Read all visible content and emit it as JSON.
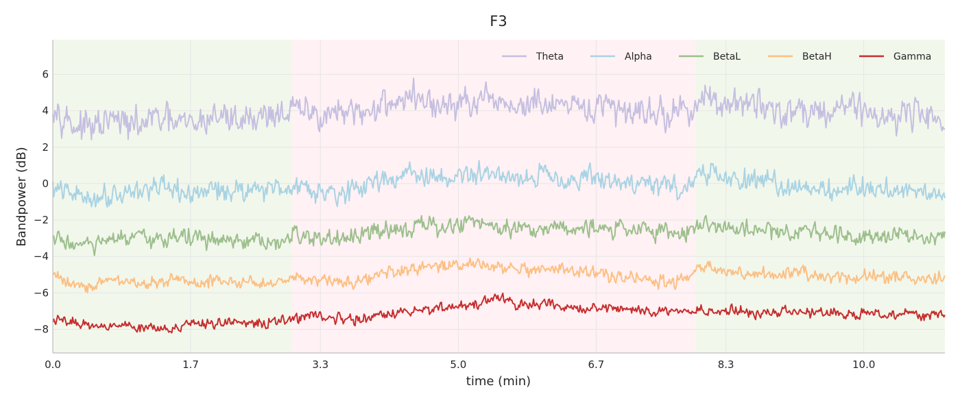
{
  "chart_data": {
    "type": "line",
    "title": "F3",
    "xlabel": "time (min)",
    "ylabel": "Bandpower (dB)",
    "xlim": [
      0,
      11
    ],
    "ylim": [
      -9.3,
      7.9
    ],
    "grid": true,
    "legend_position": "top-right",
    "x_ticks": [
      0.0,
      1.7,
      3.3,
      5.0,
      6.7,
      8.3,
      10.0
    ],
    "x_tick_labels": [
      "0.0",
      "1.7",
      "3.3",
      "5.0",
      "6.7",
      "8.3",
      "10.0"
    ],
    "y_ticks": [
      -8,
      -6,
      -4,
      -2,
      0,
      2,
      4,
      6
    ],
    "y_tick_labels": [
      "−8",
      "−6",
      "−4",
      "−2",
      "0",
      "2",
      "4",
      "6"
    ],
    "shaded_regions": [
      {
        "start": 0.0,
        "end": 2.95,
        "color": "#f2f7ec"
      },
      {
        "start": 2.95,
        "end": 7.92,
        "color": "#fff1f4"
      },
      {
        "start": 7.92,
        "end": 11.0,
        "color": "#f2f7ec"
      }
    ],
    "series": [
      {
        "name": "Theta",
        "color": "#c5bfe0",
        "x": [
          0.0,
          0.25,
          0.5,
          0.75,
          1.0,
          1.25,
          1.5,
          1.75,
          2.0,
          2.25,
          2.5,
          2.75,
          3.0,
          3.25,
          3.5,
          3.75,
          4.0,
          4.25,
          4.5,
          4.75,
          5.0,
          5.25,
          5.5,
          5.75,
          6.0,
          6.25,
          6.5,
          6.75,
          7.0,
          7.25,
          7.5,
          7.75,
          8.0,
          8.25,
          8.5,
          8.75,
          9.0,
          9.25,
          9.5,
          9.75,
          10.0,
          10.25,
          10.5,
          10.75,
          11.0
        ],
        "values": [
          4.5,
          3.2,
          3.0,
          3.5,
          3.1,
          3.6,
          3.3,
          3.2,
          3.8,
          3.5,
          3.7,
          3.9,
          4.0,
          3.8,
          3.9,
          3.6,
          4.3,
          4.6,
          4.8,
          4.1,
          4.4,
          4.3,
          4.5,
          4.2,
          4.4,
          4.1,
          4.0,
          4.3,
          3.9,
          4.2,
          3.8,
          3.9,
          4.6,
          4.5,
          4.2,
          4.4,
          3.9,
          4.1,
          3.9,
          4.4,
          4.1,
          3.6,
          3.9,
          3.8,
          3.6
        ],
        "noise": 0.75
      },
      {
        "name": "Alpha",
        "color": "#a9d3e3",
        "x": [
          0.0,
          0.25,
          0.5,
          0.75,
          1.0,
          1.25,
          1.5,
          1.75,
          2.0,
          2.25,
          2.5,
          2.75,
          3.0,
          3.25,
          3.5,
          3.75,
          4.0,
          4.25,
          4.5,
          4.75,
          5.0,
          5.25,
          5.5,
          5.75,
          6.0,
          6.25,
          6.5,
          6.75,
          7.0,
          7.25,
          7.5,
          7.75,
          8.0,
          8.25,
          8.5,
          8.75,
          9.0,
          9.25,
          9.5,
          9.75,
          10.0,
          10.25,
          10.5,
          10.75,
          11.0
        ],
        "values": [
          -0.3,
          -0.6,
          -0.8,
          -0.5,
          -0.4,
          -0.2,
          -0.5,
          -0.6,
          -0.3,
          -0.4,
          -0.2,
          -0.3,
          -0.1,
          -0.3,
          -0.4,
          -0.5,
          0.3,
          0.4,
          0.5,
          0.2,
          0.4,
          0.5,
          0.6,
          0.3,
          0.5,
          0.4,
          0.2,
          0.3,
          0.0,
          0.1,
          -0.1,
          -0.3,
          0.6,
          0.3,
          0.2,
          0.1,
          -0.2,
          0.0,
          -0.4,
          -0.3,
          -0.1,
          -0.4,
          -0.3,
          -0.4,
          -0.5
        ],
        "noise": 0.55
      },
      {
        "name": "BetaL",
        "color": "#9cbf8c",
        "x": [
          0.0,
          0.25,
          0.5,
          0.75,
          1.0,
          1.25,
          1.5,
          1.75,
          2.0,
          2.25,
          2.5,
          2.75,
          3.0,
          3.25,
          3.5,
          3.75,
          4.0,
          4.25,
          4.5,
          4.75,
          5.0,
          5.25,
          5.5,
          5.75,
          6.0,
          6.25,
          6.5,
          6.75,
          7.0,
          7.25,
          7.5,
          7.75,
          8.0,
          8.25,
          8.5,
          8.75,
          9.0,
          9.25,
          9.5,
          9.75,
          10.0,
          10.25,
          10.5,
          10.75,
          11.0
        ],
        "values": [
          -3.0,
          -3.3,
          -3.4,
          -3.1,
          -3.0,
          -3.2,
          -2.8,
          -3.0,
          -3.1,
          -3.3,
          -3.2,
          -3.4,
          -2.8,
          -3.0,
          -3.1,
          -3.0,
          -2.6,
          -2.4,
          -2.3,
          -2.5,
          -2.2,
          -2.1,
          -2.3,
          -2.4,
          -2.5,
          -2.3,
          -2.4,
          -2.6,
          -2.4,
          -2.5,
          -2.6,
          -2.7,
          -2.2,
          -2.4,
          -2.6,
          -2.5,
          -2.7,
          -2.5,
          -2.6,
          -2.9,
          -2.8,
          -2.7,
          -2.8,
          -2.9,
          -2.8
        ],
        "noise": 0.45
      },
      {
        "name": "BetaH",
        "color": "#fcbf82",
        "x": [
          0.0,
          0.25,
          0.5,
          0.75,
          1.0,
          1.25,
          1.5,
          1.75,
          2.0,
          2.25,
          2.5,
          2.75,
          3.0,
          3.25,
          3.5,
          3.75,
          4.0,
          4.25,
          4.5,
          4.75,
          5.0,
          5.25,
          5.5,
          5.75,
          6.0,
          6.25,
          6.5,
          6.75,
          7.0,
          7.25,
          7.5,
          7.75,
          8.0,
          8.25,
          8.5,
          8.75,
          9.0,
          9.25,
          9.5,
          9.75,
          10.0,
          10.25,
          10.5,
          10.75,
          11.0
        ],
        "values": [
          -5.0,
          -5.5,
          -5.6,
          -5.3,
          -5.4,
          -5.5,
          -5.2,
          -5.6,
          -5.3,
          -5.4,
          -5.5,
          -5.4,
          -5.1,
          -5.2,
          -5.4,
          -5.3,
          -5.0,
          -4.9,
          -4.7,
          -4.6,
          -4.5,
          -4.3,
          -4.6,
          -4.8,
          -4.9,
          -4.7,
          -4.8,
          -5.0,
          -5.1,
          -5.2,
          -5.4,
          -5.3,
          -4.6,
          -4.8,
          -5.0,
          -5.0,
          -5.1,
          -4.9,
          -5.1,
          -5.2,
          -5.0,
          -5.1,
          -5.2,
          -5.3,
          -5.2
        ],
        "noise": 0.32
      },
      {
        "name": "Gamma",
        "color": "#c62d2d",
        "x": [
          0.0,
          0.25,
          0.5,
          0.75,
          1.0,
          1.25,
          1.5,
          1.75,
          2.0,
          2.25,
          2.5,
          2.75,
          3.0,
          3.25,
          3.5,
          3.75,
          4.0,
          4.25,
          4.5,
          4.75,
          5.0,
          5.25,
          5.5,
          5.75,
          6.0,
          6.25,
          6.5,
          6.75,
          7.0,
          7.25,
          7.5,
          7.75,
          8.0,
          8.25,
          8.5,
          8.75,
          9.0,
          9.25,
          9.5,
          9.75,
          10.0,
          10.25,
          10.5,
          10.75,
          11.0
        ],
        "values": [
          -7.5,
          -7.6,
          -7.8,
          -7.7,
          -7.9,
          -7.8,
          -7.9,
          -7.8,
          -7.7,
          -7.6,
          -7.7,
          -7.6,
          -7.4,
          -7.2,
          -7.4,
          -7.5,
          -7.3,
          -7.1,
          -7.0,
          -6.8,
          -6.7,
          -6.6,
          -6.3,
          -6.7,
          -6.6,
          -6.8,
          -6.9,
          -6.8,
          -6.9,
          -7.0,
          -7.1,
          -7.0,
          -6.9,
          -7.0,
          -7.0,
          -7.1,
          -7.0,
          -7.1,
          -7.0,
          -7.2,
          -7.1,
          -7.2,
          -7.1,
          -7.2,
          -7.3
        ],
        "noise": 0.25
      }
    ]
  }
}
